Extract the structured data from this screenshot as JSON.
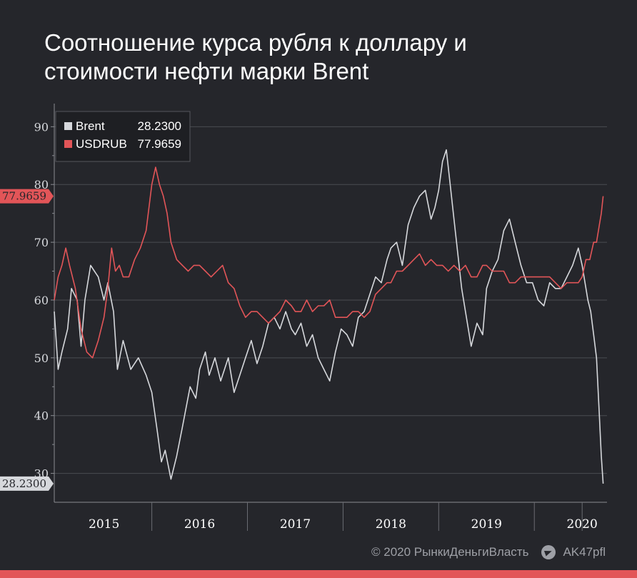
{
  "title": {
    "line1": "Соотношение курса рубля к доллару и",
    "line2": "стоимости нефти марки Brent"
  },
  "footer": {
    "copyright": "© 2020 РынкиДеньгиВласть",
    "channel": "AK47pfl",
    "channel_icon": "telegram-icon"
  },
  "colors": {
    "background": "#25262b",
    "brent": "#d6d8dc",
    "usdrub": "#e25558",
    "grid": "#4a4c52",
    "accent_bar": "#e25558"
  },
  "chart_data": {
    "type": "line",
    "title": "Соотношение курса рубля к доллару и стоимости нефти марки Brent",
    "xlabel": "",
    "ylabel": "",
    "ylim": [
      25,
      94
    ],
    "xlim": [
      2014.48,
      2020.26
    ],
    "yticks": [
      30,
      40,
      50,
      60,
      70,
      80,
      90
    ],
    "year_labels": [
      "2015",
      "2016",
      "2017",
      "2018",
      "2019",
      "2020"
    ],
    "year_label_positions": [
      2015.0,
      2016.0,
      2017.0,
      2018.0,
      2019.0,
      2020.0
    ],
    "grid": true,
    "legend_position": "top-left",
    "legend": [
      {
        "name": "Brent",
        "value": "28.2300"
      },
      {
        "name": "USDRUB",
        "value": "77.9659"
      }
    ],
    "last_value_labels": {
      "brent": "28.2300",
      "usdrub": "77.9659"
    },
    "series": [
      {
        "name": "Brent",
        "x": [
          2014.48,
          2014.52,
          2014.56,
          2014.62,
          2014.66,
          2014.72,
          2014.76,
          2014.8,
          2014.86,
          2014.9,
          2014.94,
          2015.0,
          2015.04,
          2015.1,
          2015.14,
          2015.2,
          2015.28,
          2015.36,
          2015.44,
          2015.5,
          2015.56,
          2015.6,
          2015.64,
          2015.7,
          2015.76,
          2015.82,
          2015.9,
          2015.96,
          2016.0,
          2016.06,
          2016.1,
          2016.16,
          2016.22,
          2016.3,
          2016.36,
          2016.42,
          2016.48,
          2016.54,
          2016.6,
          2016.66,
          2016.72,
          2016.78,
          2016.84,
          2016.9,
          2016.96,
          2017.0,
          2017.06,
          2017.12,
          2017.18,
          2017.24,
          2017.3,
          2017.36,
          2017.42,
          2017.48,
          2017.54,
          2017.6,
          2017.66,
          2017.72,
          2017.78,
          2017.84,
          2017.9,
          2017.96,
          2018.0,
          2018.06,
          2018.12,
          2018.18,
          2018.24,
          2018.3,
          2018.36,
          2018.42,
          2018.46,
          2018.5,
          2018.54,
          2018.58,
          2018.62,
          2018.66,
          2018.7,
          2018.74,
          2018.78,
          2018.84,
          2018.9,
          2018.96,
          2019.0,
          2019.06,
          2019.12,
          2019.18,
          2019.24,
          2019.3,
          2019.36,
          2019.42,
          2019.48,
          2019.54,
          2019.6,
          2019.66,
          2019.72,
          2019.78,
          2019.84,
          2019.9,
          2019.96,
          2020.0,
          2020.03,
          2020.06,
          2020.09,
          2020.12,
          2020.15,
          2020.18,
          2020.2,
          2020.22
        ],
        "values": [
          58,
          48,
          51,
          55,
          62,
          60,
          52,
          60,
          66,
          65,
          64,
          60,
          63,
          58,
          48,
          53,
          48,
          50,
          47,
          44,
          37,
          32,
          34,
          29,
          33,
          38,
          45,
          43,
          48,
          51,
          47,
          50,
          46,
          50,
          44,
          47,
          50,
          53,
          49,
          52,
          56,
          57,
          55,
          58,
          55,
          54,
          56,
          52,
          54,
          50,
          48,
          46,
          51,
          55,
          54,
          52,
          57,
          58,
          61,
          64,
          63,
          67,
          69,
          70,
          66,
          73,
          76,
          78,
          79,
          74,
          76,
          79,
          84,
          86,
          80,
          74,
          68,
          62,
          58,
          52,
          56,
          54,
          62,
          65,
          67,
          72,
          74,
          70,
          66,
          63,
          63,
          60,
          59,
          63,
          62,
          62,
          64,
          66,
          69,
          66,
          63,
          60,
          58,
          54,
          50,
          40,
          33,
          28.23
        ]
      },
      {
        "name": "USDRUB",
        "x": [
          2014.48,
          2014.52,
          2014.56,
          2014.6,
          2014.64,
          2014.7,
          2014.76,
          2014.82,
          2014.88,
          2014.94,
          2015.0,
          2015.04,
          2015.08,
          2015.12,
          2015.16,
          2015.2,
          2015.26,
          2015.32,
          2015.38,
          2015.44,
          2015.5,
          2015.54,
          2015.58,
          2015.62,
          2015.66,
          2015.7,
          2015.76,
          2015.82,
          2015.88,
          2015.94,
          2016.0,
          2016.06,
          2016.12,
          2016.18,
          2016.24,
          2016.3,
          2016.36,
          2016.42,
          2016.48,
          2016.54,
          2016.6,
          2016.66,
          2016.72,
          2016.78,
          2016.84,
          2016.9,
          2016.96,
          2017.0,
          2017.06,
          2017.12,
          2017.18,
          2017.24,
          2017.3,
          2017.36,
          2017.42,
          2017.48,
          2017.54,
          2017.6,
          2017.66,
          2017.72,
          2017.78,
          2017.84,
          2017.9,
          2017.96,
          2018.0,
          2018.06,
          2018.12,
          2018.18,
          2018.24,
          2018.3,
          2018.36,
          2018.42,
          2018.48,
          2018.54,
          2018.6,
          2018.66,
          2018.72,
          2018.78,
          2018.84,
          2018.9,
          2018.96,
          2019.0,
          2019.06,
          2019.12,
          2019.18,
          2019.24,
          2019.3,
          2019.36,
          2019.42,
          2019.48,
          2019.54,
          2019.6,
          2019.66,
          2019.72,
          2019.78,
          2019.84,
          2019.9,
          2019.96,
          2020.0,
          2020.04,
          2020.08,
          2020.12,
          2020.15,
          2020.18,
          2020.2,
          2020.22
        ],
        "values": [
          60,
          64,
          66,
          69,
          66,
          62,
          55,
          51,
          50,
          53,
          57,
          62,
          69,
          65,
          66,
          64,
          64,
          67,
          69,
          72,
          80,
          83,
          80,
          78,
          75,
          70,
          67,
          66,
          65,
          66,
          66,
          65,
          64,
          65,
          66,
          63,
          62,
          59,
          57,
          58,
          58,
          57,
          56,
          57,
          58,
          60,
          59,
          58,
          58,
          60,
          58,
          59,
          59,
          60,
          57,
          57,
          57,
          58,
          58,
          57,
          58,
          61,
          62,
          63,
          63,
          65,
          65,
          66,
          67,
          68,
          66,
          67,
          66,
          66,
          65,
          66,
          65,
          66,
          64,
          64,
          66,
          66,
          65,
          65,
          65,
          63,
          63,
          64,
          64,
          64,
          64,
          64,
          64,
          63,
          62,
          63,
          63,
          63,
          64,
          67,
          67,
          70,
          70,
          73,
          75,
          77.97
        ]
      }
    ]
  }
}
